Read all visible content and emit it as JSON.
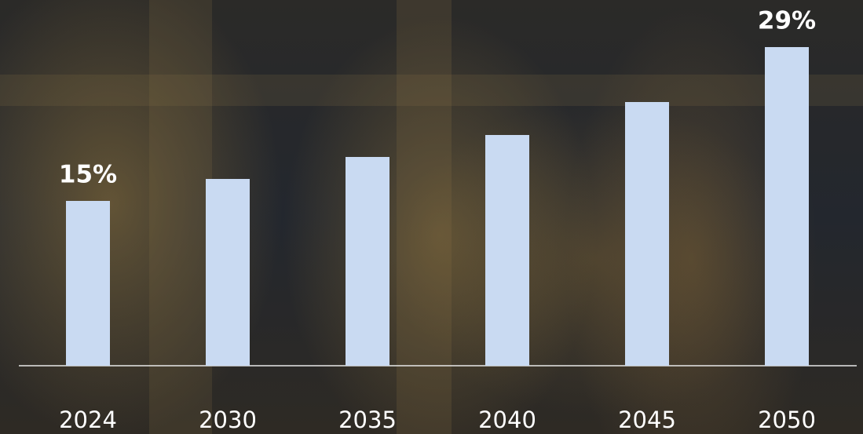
{
  "chart_data": {
    "type": "bar",
    "categories": [
      "2024",
      "2030",
      "2035",
      "2040",
      "2045",
      "2050"
    ],
    "values": [
      15,
      17,
      19,
      21,
      24,
      29
    ],
    "value_labels": [
      "15%",
      null,
      null,
      null,
      null,
      "29%"
    ],
    "color": "#c9daf2",
    "ylim": [
      0,
      30
    ]
  }
}
